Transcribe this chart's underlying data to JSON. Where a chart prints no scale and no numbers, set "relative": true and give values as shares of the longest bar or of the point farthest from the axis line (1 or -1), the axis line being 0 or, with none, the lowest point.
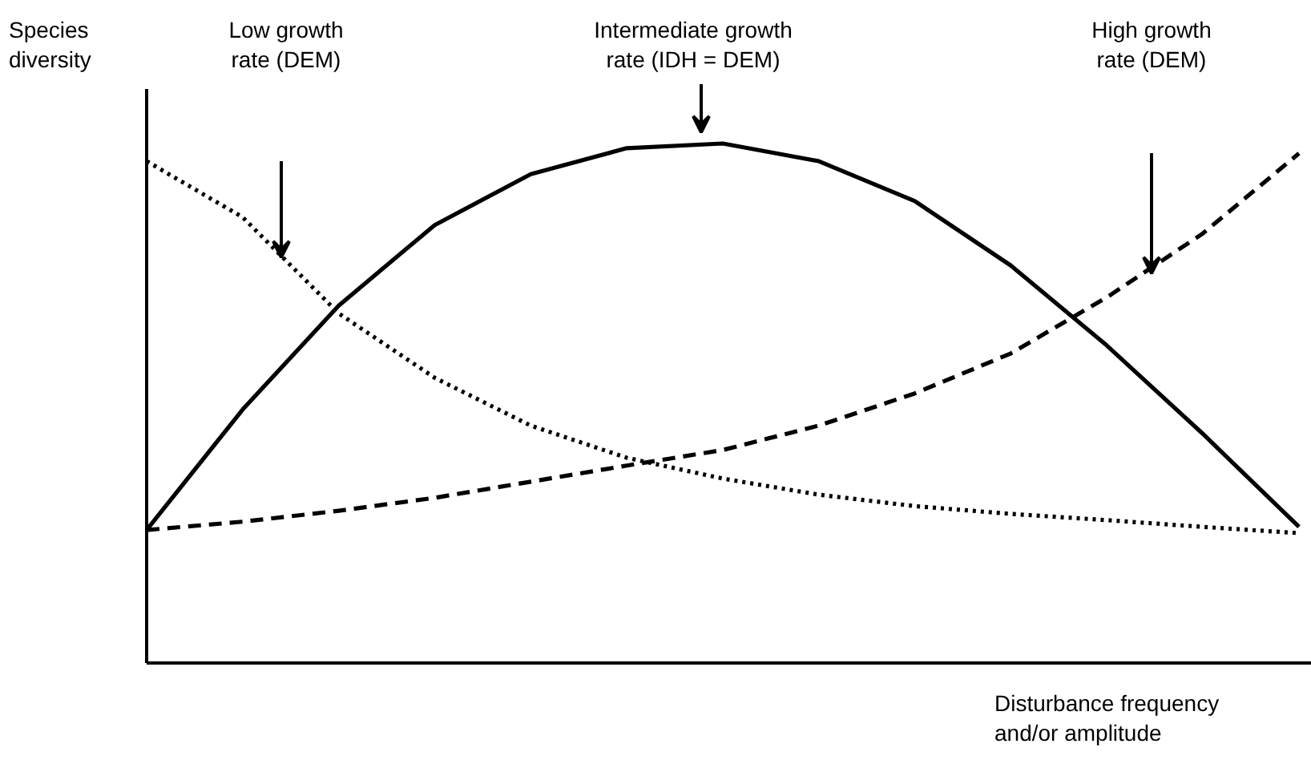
{
  "chart_data": {
    "type": "line",
    "relative": true,
    "xlabel": "Disturbance frequency and/or amplitude",
    "ylabel": "Species diversity",
    "categories": [
      null,
      null,
      null,
      null,
      null,
      null,
      null,
      null,
      null,
      null,
      null,
      null,
      null
    ],
    "series": [
      {
        "color": "#000000",
        "line_style": "solid",
        "values": [
          0.256,
          0.488,
          0.688,
          0.843,
          0.941,
          0.991,
          1,
          0.966,
          0.889,
          0.765,
          0.611,
          0.441,
          0.262
        ]
      },
      {
        "color": "#000000",
        "line_style": "dashed",
        "values": [
          0.256,
          0.272,
          0.293,
          0.318,
          0.349,
          0.38,
          0.41,
          0.457,
          0.519,
          0.596,
          0.704,
          0.827,
          0.981
        ]
      },
      {
        "color": "#000000",
        "line_style": "dotted",
        "values": [
          0.966,
          0.858,
          0.673,
          0.549,
          0.457,
          0.395,
          0.355,
          0.324,
          0.302,
          0.287,
          0.275,
          0.262,
          0.25
        ]
      }
    ],
    "annotations": [
      "Low growth rate (DEM)",
      "Intermediate growth rate (IDH = DEM)",
      "High growth rate (DEM)"
    ],
    "marker": "none"
  }
}
